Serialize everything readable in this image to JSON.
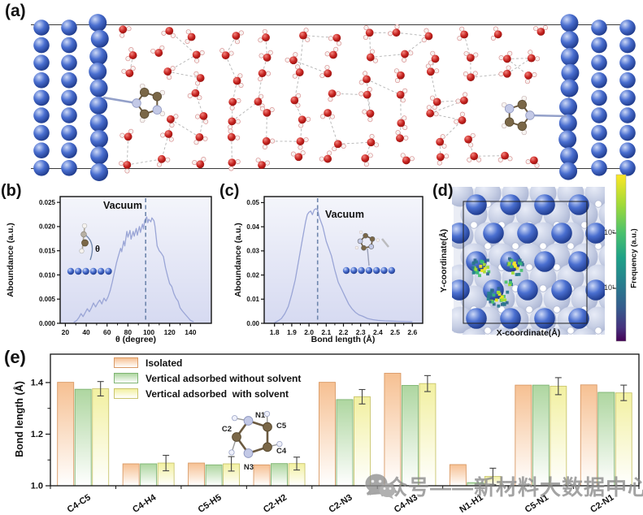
{
  "panels": {
    "a": {
      "label": "(a)",
      "colors": {
        "metal": "#2f54b8",
        "oxygen": "#c32427",
        "hydrogen": "#f7f3f1",
        "carbon": "#7a6747",
        "nitrogen": "#c3c9e6",
        "hbond": "#9a9a9a",
        "boundary": "#3a3a3a"
      }
    },
    "b": {
      "label": "(b)",
      "annotation": "Vacuum",
      "xlabel": "θ (degree)",
      "ylabel": "Aboundance (a.u.)",
      "theta_symbol": "θ"
    },
    "c": {
      "label": "(c)",
      "annotation": "Vacuum",
      "xlabel": "Bond length (Å)",
      "ylabel": "Aboundance (a.u.)"
    },
    "d": {
      "label": "(d)",
      "xlabel": "X-coordinate(Å)",
      "ylabel": "Y-coordinate(Å)",
      "colorbar_label": "Frequency (a.u.)",
      "colorbar_ticks": [
        "10²",
        "10¹"
      ]
    },
    "e": {
      "label": "(e)",
      "ylabel": "Bond length (Å)"
    }
  },
  "chart_data": [
    {
      "id": "b",
      "type": "line",
      "xlabel": "θ (degree)",
      "ylabel": "Aboundance (a.u.)",
      "annotation": "Vacuum",
      "xlim": [
        15,
        160
      ],
      "ylim": [
        0,
        0.0262
      ],
      "xticks": [
        20,
        40,
        60,
        80,
        100,
        120,
        140
      ],
      "xtick_labels": [
        "20",
        "40",
        "60",
        "80",
        "100",
        "120",
        "140"
      ],
      "xminor": [
        30,
        50,
        70,
        90,
        110,
        130
      ],
      "yticks": [
        0.0,
        0.005,
        0.01,
        0.015,
        0.02,
        0.025
      ],
      "ytick_labels": [
        "0.000",
        "0.005",
        "0.010",
        "0.015",
        "0.020",
        "0.025"
      ],
      "vline": 97,
      "line_color": "#9aa5d6",
      "vline_color": "#6f86ad",
      "x": [
        28,
        31,
        33,
        35,
        37,
        39,
        41,
        43,
        45,
        47,
        49,
        51,
        53,
        55,
        57,
        59,
        61,
        63,
        65,
        67,
        69,
        71,
        73,
        74,
        76,
        77,
        79,
        80,
        82,
        83,
        85,
        86,
        88,
        89,
        91,
        92,
        94,
        95,
        96,
        98,
        99,
        100,
        102,
        103,
        105,
        106,
        108,
        110,
        112,
        114,
        116,
        118,
        120,
        122,
        124,
        126,
        128,
        130,
        132,
        134,
        136,
        138,
        140,
        143
      ],
      "y": [
        0.0002,
        0.0006,
        0.0012,
        0.002,
        0.0014,
        0.0022,
        0.003,
        0.0024,
        0.0032,
        0.0042,
        0.0034,
        0.0042,
        0.0048,
        0.004,
        0.0052,
        0.0046,
        0.0055,
        0.0068,
        0.0085,
        0.0105,
        0.0125,
        0.014,
        0.0155,
        0.0148,
        0.017,
        0.016,
        0.019,
        0.0178,
        0.0192,
        0.0174,
        0.019,
        0.018,
        0.0196,
        0.0182,
        0.02,
        0.0188,
        0.0205,
        0.0195,
        0.0212,
        0.022,
        0.0208,
        0.0215,
        0.021,
        0.0218,
        0.0212,
        0.02,
        0.016,
        0.015,
        0.0145,
        0.0138,
        0.0115,
        0.0098,
        0.0082,
        0.0076,
        0.0062,
        0.0052,
        0.0046,
        0.0032,
        0.0026,
        0.0021,
        0.0016,
        0.0011,
        0.0006,
        0.0003
      ]
    },
    {
      "id": "c",
      "type": "line",
      "xlabel": "Bond length (Å)",
      "ylabel": "Aboundance (a.u.)",
      "annotation": "Vacuum",
      "xlim": [
        1.74,
        2.66
      ],
      "ylim": [
        0,
        0.0525
      ],
      "xticks": [
        1.8,
        1.9,
        2.0,
        2.1,
        2.2,
        2.3,
        2.4,
        2.5,
        2.6
      ],
      "xtick_labels": [
        "1.8",
        "1.9",
        "2.0",
        "2.1",
        "2.2",
        "2.3",
        "2.4",
        "2.5",
        "2.6"
      ],
      "xminor": [
        1.85,
        1.95,
        2.05,
        2.15,
        2.25,
        2.35,
        2.45,
        2.55
      ],
      "yticks": [
        0.0,
        0.01,
        0.02,
        0.03,
        0.04,
        0.05
      ],
      "ytick_labels": [
        "0.00",
        "0.01",
        "0.02",
        "0.03",
        "0.04",
        "0.05"
      ],
      "vline": 2.05,
      "line_color": "#9aa5d6",
      "vline_color": "#6f86ad",
      "x": [
        1.8,
        1.82,
        1.84,
        1.86,
        1.88,
        1.9,
        1.92,
        1.94,
        1.96,
        1.98,
        1.99,
        2.0,
        2.01,
        2.02,
        2.03,
        2.04,
        2.05,
        2.06,
        2.08,
        2.1,
        2.11,
        2.13,
        2.15,
        2.17,
        2.19,
        2.21,
        2.23,
        2.25,
        2.27,
        2.29,
        2.31,
        2.34,
        2.37,
        2.4,
        2.44,
        2.48,
        2.52,
        2.56,
        2.6
      ],
      "y": [
        0.0002,
        0.001,
        0.002,
        0.004,
        0.007,
        0.012,
        0.018,
        0.026,
        0.034,
        0.042,
        0.045,
        0.046,
        0.0465,
        0.045,
        0.047,
        0.0475,
        0.047,
        0.044,
        0.04,
        0.034,
        0.032,
        0.028,
        0.022,
        0.017,
        0.014,
        0.011,
        0.008,
        0.006,
        0.0045,
        0.0035,
        0.003,
        0.002,
        0.0015,
        0.0012,
        0.001,
        0.0009,
        0.0008,
        0.0007,
        0.0006
      ]
    },
    {
      "id": "d",
      "type": "heatmap",
      "xlabel": "X-coordinate(Å)",
      "ylabel": "Y-coordinate(Å)",
      "colorbar_label": "Frequency (a.u.)",
      "scale": "log",
      "colorbar_ticks": [
        "10²",
        "10¹"
      ],
      "hotspots": [
        {
          "x": 63,
          "y": 122,
          "r": 13,
          "n": 26
        },
        {
          "x": 104,
          "y": 120,
          "r": 12,
          "n": 22
        },
        {
          "x": 83,
          "y": 158,
          "r": 13,
          "n": 30
        },
        {
          "x": 95,
          "y": 140,
          "r": 5,
          "n": 6
        }
      ]
    },
    {
      "id": "e",
      "type": "bar",
      "ylabel": "Bond length (Å)",
      "ylim": [
        1.0,
        1.51
      ],
      "yticks": [
        1.0,
        1.2,
        1.4
      ],
      "ytick_labels": [
        "1.0",
        "1.2",
        "1.4"
      ],
      "yminor": [
        1.1,
        1.3
      ],
      "categories": [
        "C4-C5",
        "C4-H4",
        "C5-H5",
        "C2-H2",
        "C2-N3",
        "C4-N3",
        "N1-H1",
        "C5-N1",
        "C2-N1"
      ],
      "series": [
        {
          "name": "Isolated",
          "color": "#f6c092",
          "edge": "#d99a66",
          "values": [
            1.401,
            1.085,
            1.088,
            1.081,
            1.401,
            1.436,
            1.082,
            1.39,
            1.391
          ]
        },
        {
          "name": "Vertical adsorbed without solvent",
          "color": "#aed6a0",
          "edge": "#7fb573",
          "values": [
            1.374,
            1.085,
            1.081,
            1.086,
            1.334,
            1.389,
            1.012,
            1.39,
            1.362
          ]
        },
        {
          "name": "Vertical adsorbed  with solvent",
          "color": "#f2f0a0",
          "edge": "#c9c56e",
          "values": [
            1.376,
            1.088,
            1.085,
            1.086,
            1.345,
            1.396,
            1.036,
            1.386,
            1.36
          ],
          "errors": [
            0.028,
            0.03,
            0.028,
            0.025,
            0.028,
            0.031,
            0.032,
            0.033,
            0.03
          ]
        }
      ]
    }
  ],
  "molecule_inset": {
    "atom_labels": [
      "N1",
      "C5",
      "C4",
      "N3",
      "C2"
    ]
  },
  "watermark": {
    "icon": "wechat-icon",
    "text": "公众号——新材料大数据中心",
    "color": "#8a8a8a"
  }
}
